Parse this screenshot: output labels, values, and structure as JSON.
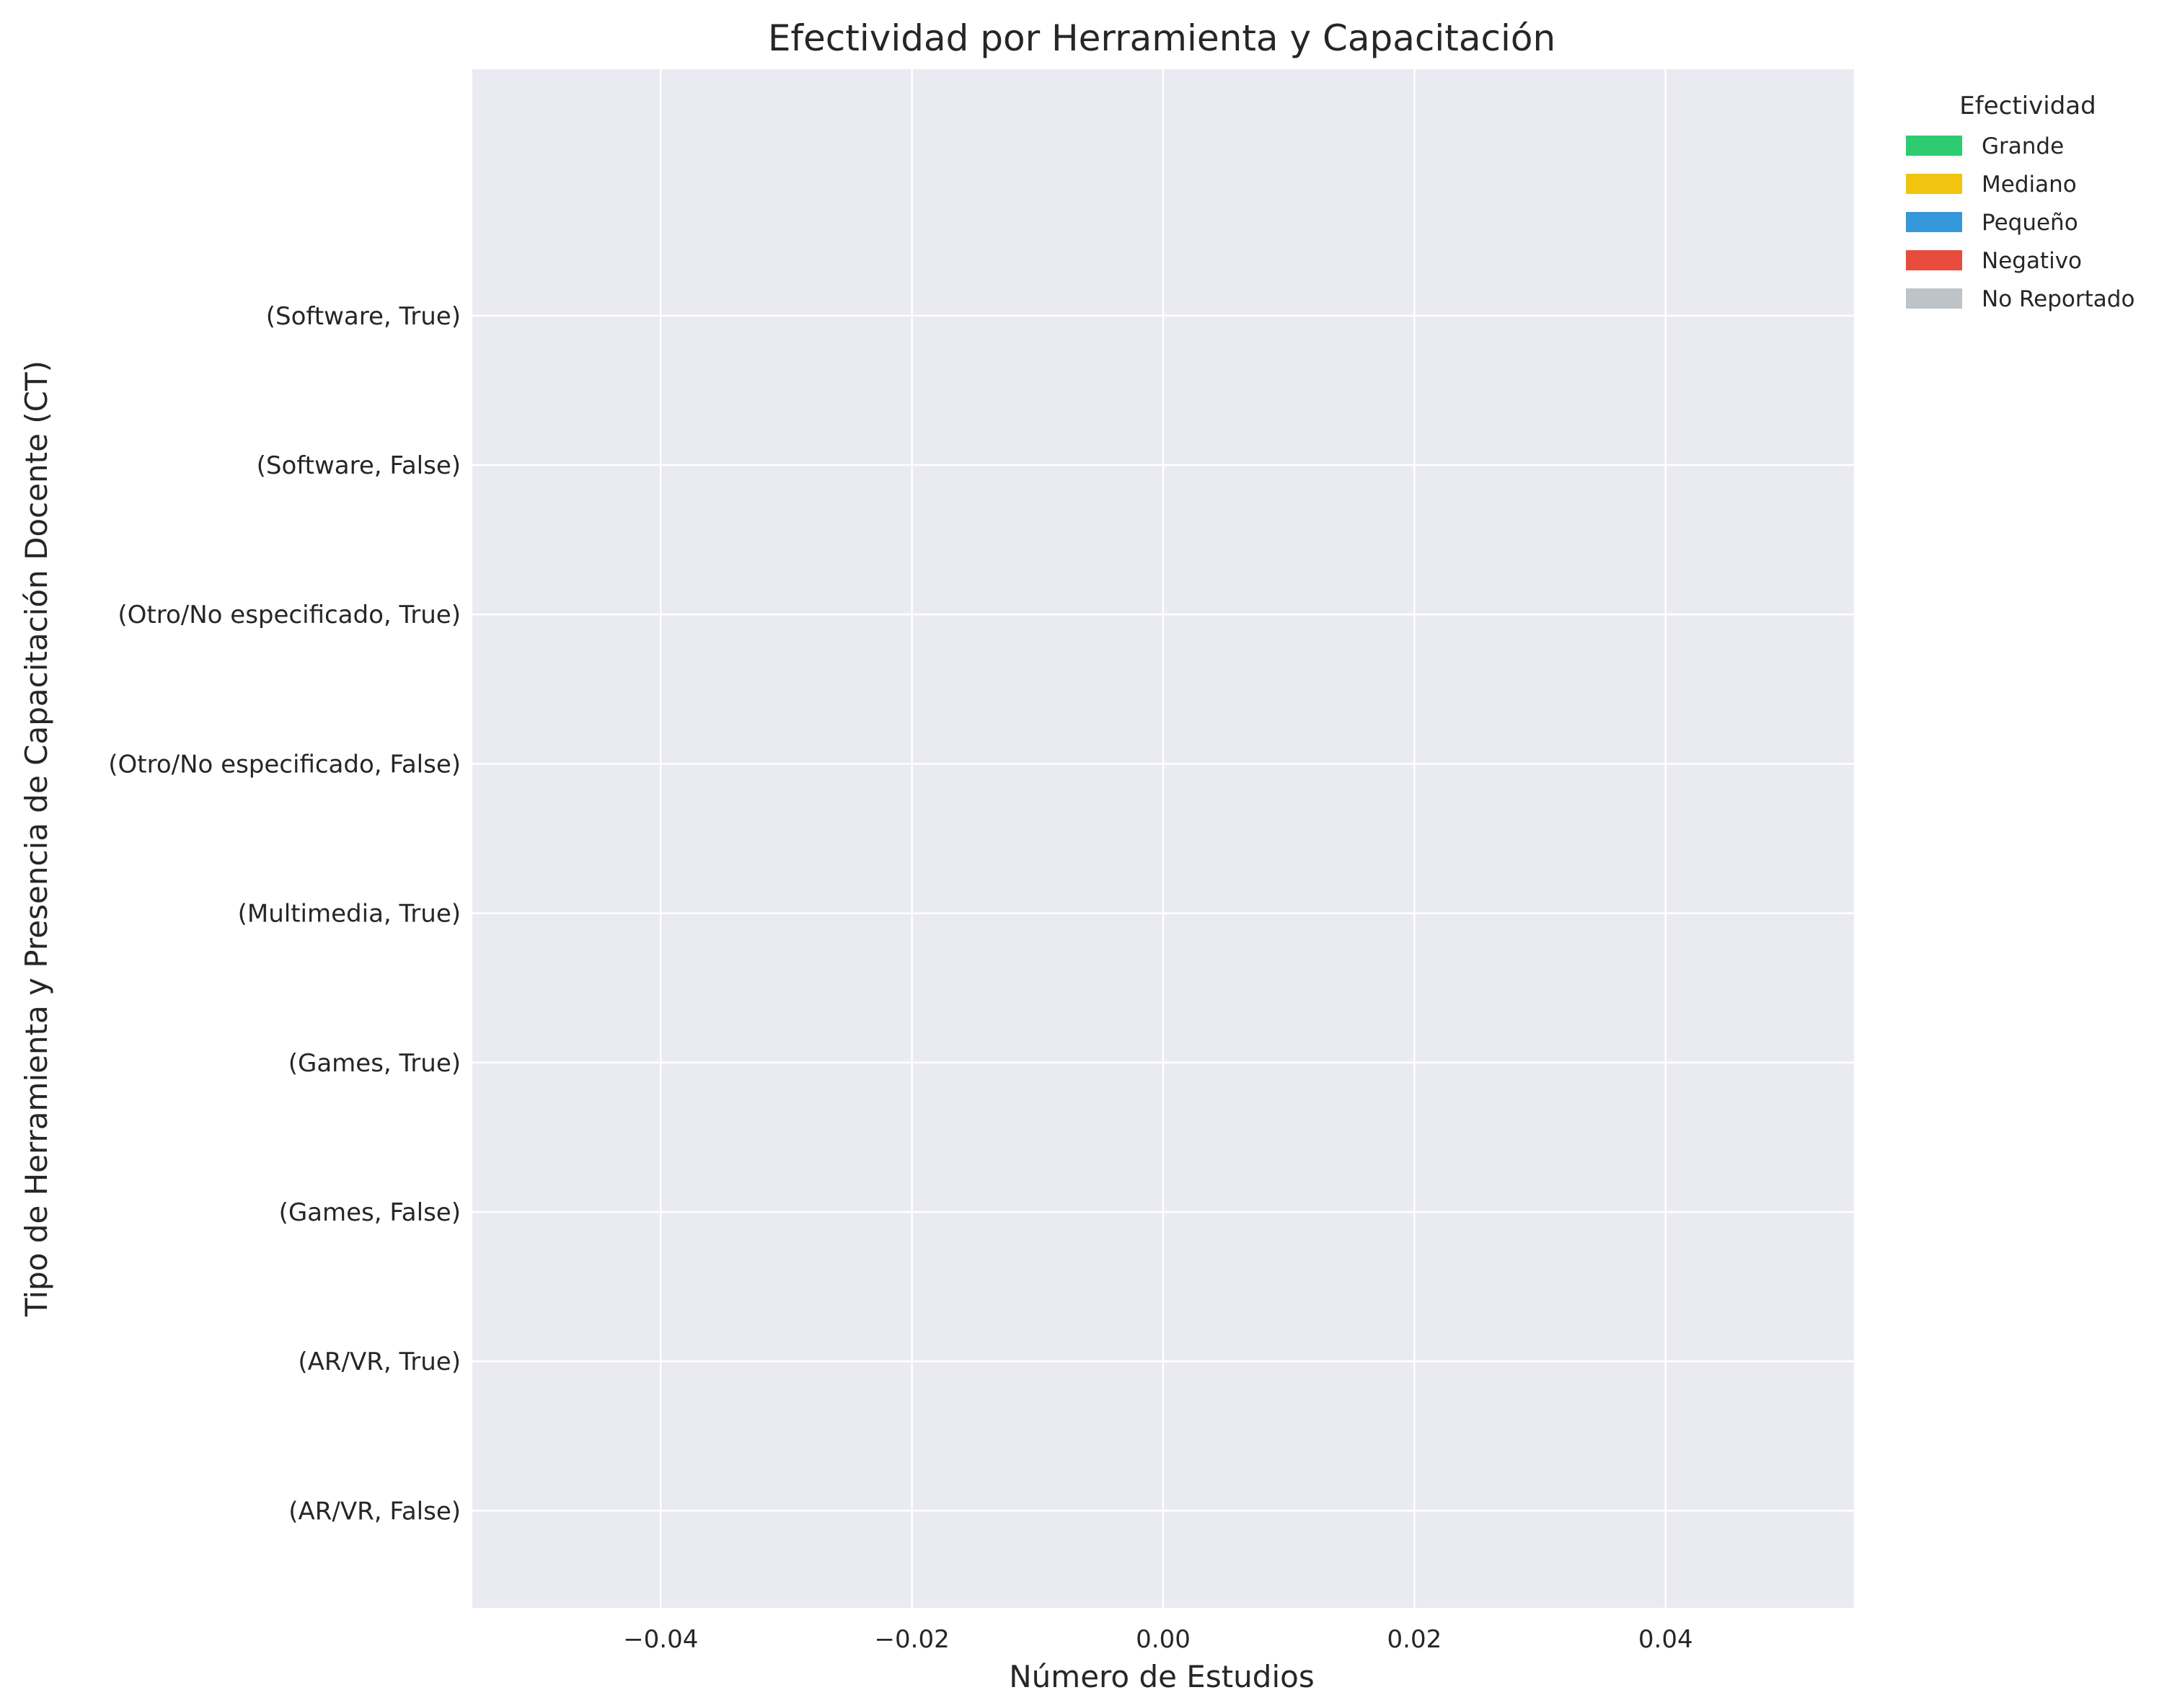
{
  "chart_data": {
    "type": "bar",
    "orientation": "horizontal",
    "stacked": true,
    "title": "Efectividad por Herramienta y Capacitación",
    "xlabel": "Número de Estudios",
    "ylabel": "Tipo de Herramienta y Presencia de Capacitación Docente (CT)",
    "categories": [
      "(AR/VR, False)",
      "(AR/VR, True)",
      "(Games, False)",
      "(Games, True)",
      "(Multimedia, True)",
      "(Otro/No especificado, False)",
      "(Otro/No especificado, True)",
      "(Software, False)",
      "(Software, True)"
    ],
    "series": [
      {
        "name": "Grande",
        "color": "#2ecc71",
        "values": [
          0,
          0,
          0,
          0,
          0,
          0,
          0,
          0,
          0
        ]
      },
      {
        "name": "Mediano",
        "color": "#f1c40f",
        "values": [
          0,
          0,
          0,
          0,
          0,
          0,
          0,
          0,
          0
        ]
      },
      {
        "name": "Pequeño",
        "color": "#3498db",
        "values": [
          0,
          0,
          0,
          0,
          0,
          0,
          0,
          0,
          0
        ]
      },
      {
        "name": "Negativo",
        "color": "#e74c3c",
        "values": [
          0,
          0,
          0,
          0,
          0,
          0,
          0,
          0,
          0
        ]
      },
      {
        "name": "No Reportado",
        "color": "#bdc3c7",
        "values": [
          0,
          0,
          0,
          0,
          0,
          0,
          0,
          0,
          0
        ]
      }
    ],
    "xlim": [
      -0.055,
      0.055
    ],
    "xticks": [
      -0.04,
      -0.02,
      0.0,
      0.02,
      0.04
    ],
    "xtick_labels": [
      "−0.04",
      "−0.02",
      "0.00",
      "0.02",
      "0.04"
    ],
    "grid": true,
    "legend": {
      "title": "Efectividad",
      "placement": "outside-top-right"
    },
    "plot_background": "#eaeaf2",
    "grid_color": "#ffffff"
  }
}
